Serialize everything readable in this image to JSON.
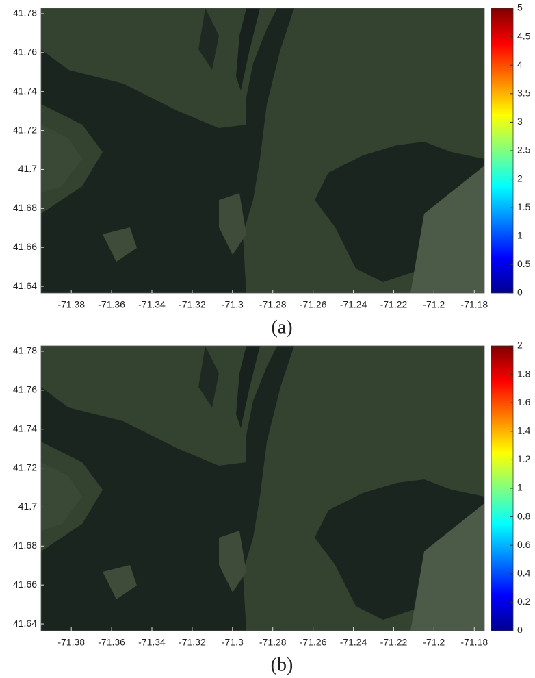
{
  "chart_data": [
    {
      "type": "map",
      "caption": "(a)",
      "xlim": [
        -71.395,
        -71.175
      ],
      "ylim": [
        41.6365,
        41.7828
      ],
      "xticks": [
        -71.38,
        -71.36,
        -71.34,
        -71.32,
        -71.3,
        -71.28,
        -71.26,
        -71.24,
        -71.22,
        -71.2,
        -71.18
      ],
      "yticks": [
        41.64,
        41.66,
        41.68,
        41.7,
        41.72,
        41.74,
        41.76,
        41.78
      ],
      "colorbar": {
        "colormap": "jet",
        "lim": [
          0,
          5
        ],
        "ticks": [
          0,
          0.5,
          1,
          1.5,
          2,
          2.5,
          3,
          3.5,
          4,
          4.5,
          5
        ]
      }
    },
    {
      "type": "map",
      "caption": "(b)",
      "xlim": [
        -71.395,
        -71.175
      ],
      "ylim": [
        41.6365,
        41.7828
      ],
      "xticks": [
        -71.38,
        -71.36,
        -71.34,
        -71.32,
        -71.3,
        -71.28,
        -71.26,
        -71.24,
        -71.22,
        -71.2,
        -71.18
      ],
      "yticks": [
        41.64,
        41.66,
        41.68,
        41.7,
        41.72,
        41.74,
        41.76,
        41.78
      ],
      "colorbar": {
        "colormap": "jet",
        "lim": [
          0,
          2
        ],
        "ticks": [
          0,
          0.2,
          0.4,
          0.6,
          0.8,
          1,
          1.2,
          1.4,
          1.6,
          1.8,
          2
        ]
      }
    }
  ]
}
